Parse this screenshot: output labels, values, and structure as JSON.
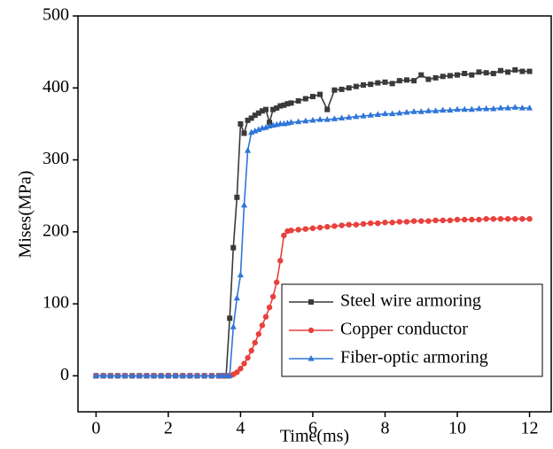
{
  "chart_data": {
    "type": "line",
    "x_label": "Time(ms)",
    "y_label": "Mises(MPa)",
    "x": [
      0,
      0.2,
      0.4,
      0.6,
      0.8,
      1.0,
      1.2,
      1.4,
      1.6,
      1.8,
      2.0,
      2.2,
      2.4,
      2.6,
      2.8,
      3.0,
      3.2,
      3.4,
      3.5,
      3.6,
      3.7,
      3.8,
      3.9,
      4.0,
      4.1,
      4.2,
      4.3,
      4.4,
      4.5,
      4.6,
      4.7,
      4.8,
      4.9,
      5.0,
      5.1,
      5.2,
      5.3,
      5.4,
      5.6,
      5.8,
      6.0,
      6.2,
      6.4,
      6.6,
      6.8,
      7.0,
      7.2,
      7.4,
      7.6,
      7.8,
      8.0,
      8.2,
      8.4,
      8.6,
      8.8,
      9.0,
      9.2,
      9.4,
      9.6,
      9.8,
      10.0,
      10.2,
      10.4,
      10.6,
      10.8,
      11.0,
      11.2,
      11.4,
      11.6,
      11.8,
      12.0
    ],
    "series": [
      {
        "name": "Steel wire armoring",
        "color": "#3a3a3a",
        "marker": "square",
        "values": [
          0,
          0,
          0,
          0,
          0,
          0,
          0,
          0,
          0,
          0,
          0,
          0,
          0,
          0,
          0,
          0,
          0,
          0,
          0,
          0,
          80,
          178,
          248,
          350,
          337,
          355,
          358,
          362,
          365,
          368,
          370,
          352,
          370,
          372,
          375,
          376,
          378,
          379,
          382,
          385,
          388,
          391,
          370,
          397,
          398,
          400,
          402,
          404,
          405,
          407,
          408,
          406,
          410,
          411,
          410,
          418,
          412,
          414,
          416,
          417,
          418,
          420,
          418,
          422,
          421,
          420,
          424,
          422,
          425,
          423,
          423
        ]
      },
      {
        "name": "Copper conductor",
        "color": "#e8413c",
        "marker": "circle",
        "values": [
          0,
          0,
          0,
          0,
          0,
          0,
          0,
          0,
          0,
          0,
          0,
          0,
          0,
          0,
          0,
          0,
          0,
          0,
          0,
          0,
          0,
          2,
          5,
          10,
          17,
          25,
          35,
          46,
          58,
          70,
          82,
          95,
          110,
          130,
          160,
          195,
          201,
          202,
          203,
          204,
          205,
          206,
          207,
          208,
          209,
          210,
          210,
          211,
          212,
          212,
          213,
          213,
          214,
          214,
          215,
          215,
          215,
          216,
          216,
          216,
          217,
          217,
          217,
          217,
          218,
          218,
          218,
          218,
          218,
          218,
          218
        ]
      },
      {
        "name": "Fiber-optic armoring",
        "color": "#2f76d8",
        "marker": "triangle",
        "values": [
          0,
          0,
          0,
          0,
          0,
          0,
          0,
          0,
          0,
          0,
          0,
          0,
          0,
          0,
          0,
          0,
          0,
          0,
          0,
          0,
          0,
          68,
          108,
          140,
          237,
          313,
          338,
          340,
          342,
          344,
          345,
          347,
          348,
          349,
          350,
          350,
          351,
          352,
          353,
          354,
          355,
          356,
          356,
          357,
          358,
          359,
          360,
          361,
          362,
          363,
          364,
          364,
          365,
          366,
          367,
          367,
          368,
          368,
          369,
          369,
          370,
          370,
          370,
          371,
          371,
          371,
          372,
          372,
          373,
          372,
          372
        ]
      }
    ],
    "xlim": [
      -0.5,
      12.6
    ],
    "ylim": [
      -50,
      500
    ],
    "xticks": [
      0,
      2,
      4,
      6,
      8,
      10,
      12
    ],
    "yticks": [
      0,
      100,
      200,
      300,
      400,
      500
    ],
    "legend": "lower right"
  }
}
